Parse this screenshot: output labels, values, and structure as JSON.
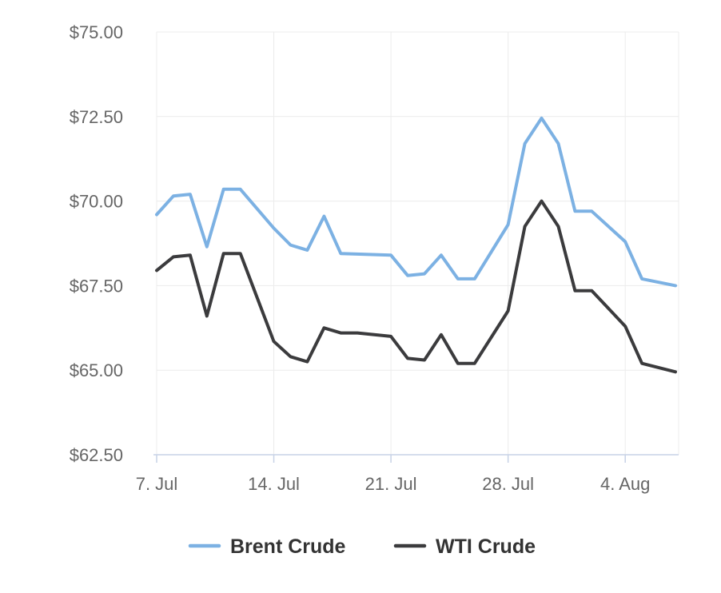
{
  "chart_data": {
    "type": "line",
    "title": "",
    "xlabel": "",
    "ylabel": "",
    "ylim": [
      62.5,
      75
    ],
    "y_ticks": [
      {
        "value": 62.5,
        "label": "$62.50"
      },
      {
        "value": 65,
        "label": "$65.00"
      },
      {
        "value": 67.5,
        "label": "$67.50"
      },
      {
        "value": 70,
        "label": "$70.00"
      },
      {
        "value": 72.5,
        "label": "$72.50"
      },
      {
        "value": 75,
        "label": "$75.00"
      }
    ],
    "x_range": [
      "2025-07-07",
      "2025-08-07"
    ],
    "x_ticks": [
      {
        "date": "2025-07-07",
        "label": "7. Jul"
      },
      {
        "date": "2025-07-14",
        "label": "14. Jul"
      },
      {
        "date": "2025-07-21",
        "label": "21. Jul"
      },
      {
        "date": "2025-07-28",
        "label": "28. Jul"
      },
      {
        "date": "2025-08-04",
        "label": "4. Aug"
      }
    ],
    "grid": true,
    "legend_position": "bottom-center",
    "series": [
      {
        "name": "Brent Crude",
        "color": "#7cb1e3",
        "points": [
          {
            "x": "2025-07-07",
            "y": 69.6
          },
          {
            "x": "2025-07-08",
            "y": 70.15
          },
          {
            "x": "2025-07-09",
            "y": 70.2
          },
          {
            "x": "2025-07-10",
            "y": 68.65
          },
          {
            "x": "2025-07-11",
            "y": 70.35
          },
          {
            "x": "2025-07-12",
            "y": 70.35
          },
          {
            "x": "2025-07-14",
            "y": 69.2
          },
          {
            "x": "2025-07-15",
            "y": 68.7
          },
          {
            "x": "2025-07-16",
            "y": 68.55
          },
          {
            "x": "2025-07-17",
            "y": 69.55
          },
          {
            "x": "2025-07-18",
            "y": 68.45
          },
          {
            "x": "2025-07-21",
            "y": 68.4
          },
          {
            "x": "2025-07-22",
            "y": 67.8
          },
          {
            "x": "2025-07-23",
            "y": 67.85
          },
          {
            "x": "2025-07-24",
            "y": 68.4
          },
          {
            "x": "2025-07-25",
            "y": 67.7
          },
          {
            "x": "2025-07-26",
            "y": 67.7
          },
          {
            "x": "2025-07-28",
            "y": 69.3
          },
          {
            "x": "2025-07-29",
            "y": 71.7
          },
          {
            "x": "2025-07-30",
            "y": 72.45
          },
          {
            "x": "2025-07-31",
            "y": 71.7
          },
          {
            "x": "2025-08-01",
            "y": 69.7
          },
          {
            "x": "2025-08-02",
            "y": 69.7
          },
          {
            "x": "2025-08-04",
            "y": 68.8
          },
          {
            "x": "2025-08-05",
            "y": 67.7
          },
          {
            "x": "2025-08-07",
            "y": 67.5
          }
        ]
      },
      {
        "name": "WTI Crude",
        "color": "#3b3b3d",
        "points": [
          {
            "x": "2025-07-07",
            "y": 67.95
          },
          {
            "x": "2025-07-08",
            "y": 68.35
          },
          {
            "x": "2025-07-09",
            "y": 68.4
          },
          {
            "x": "2025-07-10",
            "y": 66.6
          },
          {
            "x": "2025-07-11",
            "y": 68.45
          },
          {
            "x": "2025-07-12",
            "y": 68.45
          },
          {
            "x": "2025-07-14",
            "y": 65.85
          },
          {
            "x": "2025-07-15",
            "y": 65.4
          },
          {
            "x": "2025-07-16",
            "y": 65.25
          },
          {
            "x": "2025-07-17",
            "y": 66.25
          },
          {
            "x": "2025-07-18",
            "y": 66.1
          },
          {
            "x": "2025-07-19",
            "y": 66.1
          },
          {
            "x": "2025-07-21",
            "y": 66.0
          },
          {
            "x": "2025-07-22",
            "y": 65.35
          },
          {
            "x": "2025-07-23",
            "y": 65.3
          },
          {
            "x": "2025-07-24",
            "y": 66.05
          },
          {
            "x": "2025-07-25",
            "y": 65.2
          },
          {
            "x": "2025-07-26",
            "y": 65.2
          },
          {
            "x": "2025-07-28",
            "y": 66.75
          },
          {
            "x": "2025-07-29",
            "y": 69.25
          },
          {
            "x": "2025-07-30",
            "y": 70.0
          },
          {
            "x": "2025-07-31",
            "y": 69.25
          },
          {
            "x": "2025-08-01",
            "y": 67.35
          },
          {
            "x": "2025-08-02",
            "y": 67.35
          },
          {
            "x": "2025-08-04",
            "y": 66.3
          },
          {
            "x": "2025-08-05",
            "y": 65.2
          },
          {
            "x": "2025-08-07",
            "y": 64.95
          }
        ]
      }
    ]
  }
}
